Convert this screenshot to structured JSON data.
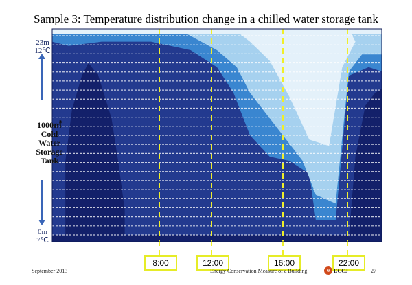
{
  "slide": {
    "title": "Sample 3: Temperature distribution change in a chilled water storage tank",
    "label_top": "23m 12℃",
    "label_bottom": "0m 7℃",
    "label_tank": "1000㎥ Cold Water Storage Tank",
    "footer_date": "September 2013",
    "footer_center": "Energy Conservation Measure of a Building",
    "footer_logo_text": "ECCJ",
    "page_number": "27"
  },
  "chart_data": {
    "type": "heatmap",
    "title": "Temperature distribution change in a chilled water storage tank",
    "x_axis": {
      "time_markers": [
        "8:00",
        "12:00",
        "16:00",
        "22:00"
      ]
    },
    "y_axis": {
      "top_label": "23m 12℃",
      "bottom_label": "0m 7℃",
      "levels": 23
    },
    "color_scale": {
      "coldest": "#13206a",
      "cold": "#233a8f",
      "mid": "#3a86d0",
      "warm": "#a6d1ef",
      "warmest": "#e4f1fa"
    },
    "regions": [
      {
        "name": "cold core before charge",
        "time_fraction": [
          0.08,
          0.27
        ],
        "level_from_bottom": [
          0,
          17
        ]
      },
      {
        "name": "warm water after discharge",
        "time_fraction": [
          0.45,
          0.82
        ],
        "level_from_bottom": [
          8,
          23
        ]
      },
      {
        "name": "cold core after night charge",
        "time_fraction": [
          0.88,
          1.0
        ],
        "level_from_bottom": [
          0,
          16
        ]
      }
    ],
    "marker_color": "#f0ef2a"
  }
}
